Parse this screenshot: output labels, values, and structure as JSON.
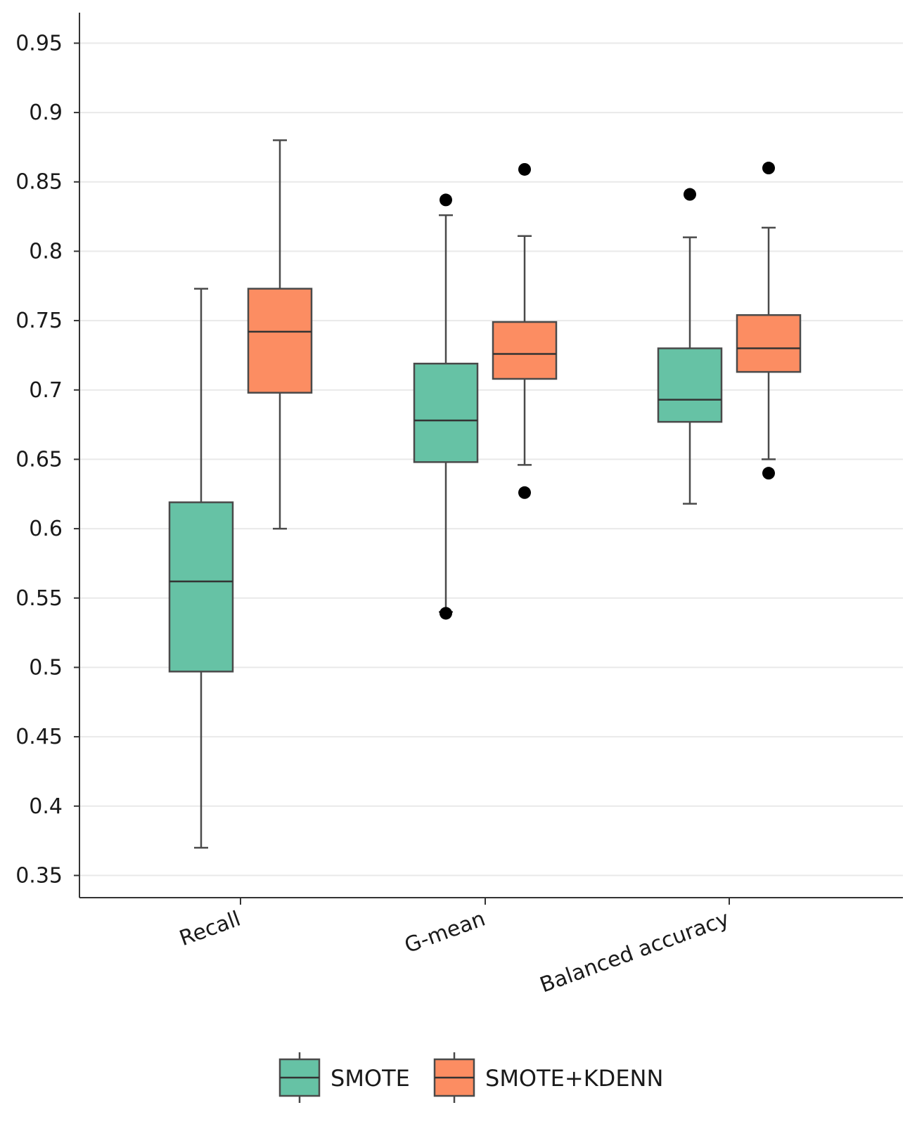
{
  "chart_data": {
    "type": "box",
    "title": "",
    "xlabel": "",
    "ylabel": "",
    "ylim": [
      0.334,
      0.972
    ],
    "yticks": [
      0.35,
      0.4,
      0.45,
      0.5,
      0.55,
      0.6,
      0.65,
      0.7,
      0.75,
      0.8,
      0.85,
      0.9,
      0.95
    ],
    "ytick_labels": [
      "0.35",
      "0.4",
      "0.45",
      "0.5",
      "0.55",
      "0.6",
      "0.65",
      "0.7",
      "0.75",
      "0.8",
      "0.85",
      "0.9",
      "0.95"
    ],
    "grid": true,
    "categories": [
      "Recall",
      "G-mean",
      "Balanced accuracy"
    ],
    "legend_position": "bottom-center",
    "series": [
      {
        "name": "SMOTE",
        "color": "#66c2a5",
        "boxes": [
          {
            "min": 0.37,
            "q1": 0.497,
            "median": 0.562,
            "q3": 0.619,
            "max": 0.773,
            "outliers": []
          },
          {
            "min": 0.54,
            "q1": 0.648,
            "median": 0.678,
            "q3": 0.719,
            "max": 0.826,
            "outliers": [
              0.837,
              0.539
            ]
          },
          {
            "min": 0.618,
            "q1": 0.677,
            "median": 0.693,
            "q3": 0.73,
            "max": 0.81,
            "outliers": [
              0.841
            ]
          }
        ]
      },
      {
        "name": "SMOTE+KDENN",
        "color": "#fc8d62",
        "boxes": [
          {
            "min": 0.6,
            "q1": 0.698,
            "median": 0.742,
            "q3": 0.773,
            "max": 0.88,
            "outliers": []
          },
          {
            "min": 0.646,
            "q1": 0.708,
            "median": 0.726,
            "q3": 0.749,
            "max": 0.811,
            "outliers": [
              0.859,
              0.626
            ]
          },
          {
            "min": 0.65,
            "q1": 0.713,
            "median": 0.73,
            "q3": 0.754,
            "max": 0.817,
            "outliers": [
              0.86,
              0.64
            ]
          }
        ]
      }
    ]
  }
}
